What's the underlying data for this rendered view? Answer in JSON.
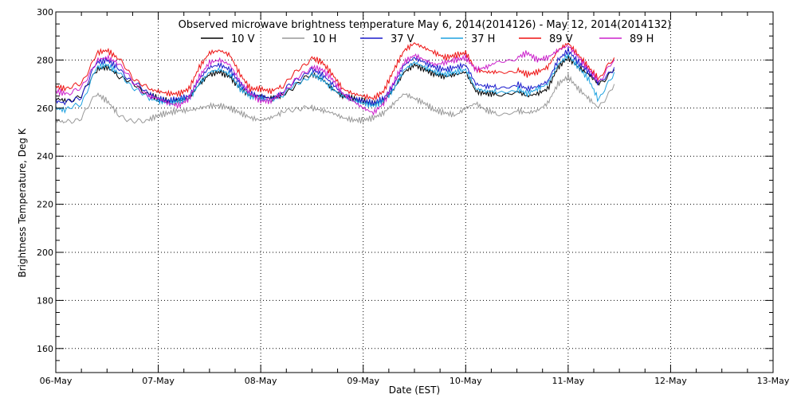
{
  "chart_data": {
    "type": "line",
    "title": "Observed microwave brightness temperature May  6, 2014(2014126) - May 12, 2014(2014132)",
    "xlabel": "Date (EST)",
    "ylabel": "Brightness Temperature, Deg K",
    "x_ticks": [
      "06-May",
      "07-May",
      "08-May",
      "09-May",
      "10-May",
      "11-May",
      "12-May",
      "13-May"
    ],
    "x_range_days": [
      0,
      7
    ],
    "ylim": [
      150,
      300
    ],
    "y_ticks": [
      160,
      180,
      200,
      220,
      240,
      260,
      280,
      300
    ],
    "grid": true,
    "legend_position": "top",
    "series": [
      {
        "name": "10 V",
        "color": "#000000",
        "x": [
          0,
          0.1,
          0.25,
          0.4,
          0.5,
          0.6,
          0.75,
          0.9,
          1.0,
          1.1,
          1.2,
          1.3,
          1.4,
          1.5,
          1.6,
          1.7,
          1.8,
          1.9,
          2.0,
          2.1,
          2.2,
          2.35,
          2.5,
          2.6,
          2.7,
          2.8,
          2.9,
          3.0,
          3.1,
          3.2,
          3.3,
          3.4,
          3.5,
          3.6,
          3.7,
          3.8,
          3.9,
          4.0,
          4.1,
          4.2,
          4.3,
          4.5,
          4.6,
          4.7,
          4.8,
          4.9,
          5.0,
          5.1,
          5.2,
          5.3,
          5.45
        ],
        "y": [
          264,
          263,
          265,
          276,
          277,
          274,
          270,
          266,
          264,
          263,
          263,
          264,
          270,
          274,
          275,
          273,
          268,
          265,
          265,
          264,
          265,
          270,
          274,
          272,
          268,
          265,
          264,
          263,
          262,
          263,
          268,
          275,
          278,
          276,
          274,
          273,
          274,
          275,
          267,
          266,
          266,
          267,
          265,
          266,
          268,
          277,
          281,
          277,
          274,
          270,
          276
        ]
      },
      {
        "name": "10 H",
        "color": "#999999",
        "x": [
          0,
          0.1,
          0.25,
          0.4,
          0.5,
          0.6,
          0.75,
          0.9,
          1.0,
          1.1,
          1.2,
          1.3,
          1.4,
          1.5,
          1.6,
          1.7,
          1.8,
          1.9,
          2.0,
          2.1,
          2.2,
          2.35,
          2.5,
          2.6,
          2.7,
          2.8,
          2.9,
          3.0,
          3.1,
          3.2,
          3.3,
          3.4,
          3.5,
          3.6,
          3.7,
          3.8,
          3.9,
          4.0,
          4.1,
          4.2,
          4.3,
          4.5,
          4.6,
          4.7,
          4.8,
          4.9,
          5.0,
          5.1,
          5.2,
          5.3,
          5.45
        ],
        "y": [
          255,
          254,
          256,
          266,
          263,
          258,
          254,
          255,
          257,
          258,
          259,
          259,
          260,
          261,
          261,
          260,
          258,
          256,
          255,
          256,
          258,
          260,
          260,
          259,
          258,
          256,
          255,
          255,
          256,
          258,
          262,
          266,
          264,
          262,
          259,
          258,
          257,
          260,
          262,
          259,
          258,
          259,
          258,
          259,
          262,
          270,
          273,
          268,
          264,
          260,
          270
        ]
      },
      {
        "name": "37 V",
        "color": "#1a1acc",
        "x": [
          0,
          0.1,
          0.25,
          0.4,
          0.5,
          0.6,
          0.75,
          0.9,
          1.0,
          1.1,
          1.2,
          1.3,
          1.4,
          1.5,
          1.6,
          1.7,
          1.8,
          1.9,
          2.0,
          2.1,
          2.2,
          2.35,
          2.5,
          2.6,
          2.7,
          2.8,
          2.9,
          3.0,
          3.1,
          3.2,
          3.3,
          3.4,
          3.5,
          3.6,
          3.7,
          3.8,
          3.9,
          4.0,
          4.1,
          4.2,
          4.3,
          4.5,
          4.6,
          4.7,
          4.8,
          4.9,
          5.0,
          5.1,
          5.2,
          5.3,
          5.45
        ],
        "y": [
          263,
          262,
          265,
          279,
          280,
          277,
          271,
          266,
          264,
          263,
          264,
          265,
          272,
          277,
          278,
          276,
          270,
          266,
          265,
          264,
          266,
          272,
          276,
          274,
          270,
          266,
          264,
          263,
          262,
          264,
          270,
          278,
          281,
          279,
          277,
          276,
          277,
          278,
          270,
          269,
          269,
          270,
          268,
          269,
          271,
          280,
          284,
          279,
          275,
          270,
          277
        ]
      },
      {
        "name": "37 H",
        "color": "#1fa2e0",
        "x": [
          0,
          0.1,
          0.25,
          0.4,
          0.5,
          0.6,
          0.75,
          0.9,
          1.0,
          1.1,
          1.2,
          1.3,
          1.4,
          1.5,
          1.6,
          1.7,
          1.8,
          1.9,
          2.0,
          2.1,
          2.2,
          2.35,
          2.5,
          2.6,
          2.7,
          2.8,
          2.9,
          3.0,
          3.1,
          3.2,
          3.3,
          3.4,
          3.5,
          3.6,
          3.7,
          3.8,
          3.9,
          4.0,
          4.1,
          4.2,
          4.3,
          4.5,
          4.6,
          4.7,
          4.8,
          4.9,
          5.0,
          5.1,
          5.2,
          5.3,
          5.45
        ],
        "y": [
          260,
          259,
          262,
          277,
          278,
          275,
          269,
          264,
          263,
          262,
          263,
          264,
          270,
          275,
          276,
          274,
          268,
          265,
          264,
          263,
          265,
          270,
          274,
          272,
          268,
          265,
          263,
          262,
          261,
          263,
          268,
          276,
          279,
          277,
          275,
          274,
          275,
          276,
          268,
          267,
          267,
          268,
          266,
          268,
          270,
          278,
          282,
          277,
          272,
          263,
          275
        ]
      },
      {
        "name": "89 V",
        "color": "#ee1111",
        "x": [
          0,
          0.1,
          0.25,
          0.4,
          0.5,
          0.6,
          0.75,
          0.9,
          1.0,
          1.1,
          1.2,
          1.3,
          1.4,
          1.5,
          1.6,
          1.7,
          1.8,
          1.9,
          2.0,
          2.1,
          2.2,
          2.35,
          2.5,
          2.6,
          2.7,
          2.8,
          2.9,
          3.0,
          3.1,
          3.2,
          3.3,
          3.4,
          3.5,
          3.6,
          3.7,
          3.8,
          3.9,
          4.0,
          4.1,
          4.2,
          4.3,
          4.5,
          4.6,
          4.7,
          4.8,
          4.9,
          5.0,
          5.1,
          5.2,
          5.3,
          5.45
        ],
        "y": [
          269,
          268,
          270,
          283,
          284,
          281,
          273,
          268,
          267,
          266,
          266,
          268,
          277,
          283,
          284,
          282,
          274,
          268,
          268,
          267,
          269,
          275,
          281,
          279,
          274,
          268,
          266,
          265,
          264,
          267,
          276,
          284,
          287,
          285,
          283,
          281,
          282,
          283,
          276,
          275,
          275,
          276,
          274,
          275,
          277,
          284,
          287,
          282,
          277,
          272,
          281
        ]
      },
      {
        "name": "89 H",
        "color": "#cc22cc",
        "x": [
          0,
          0.1,
          0.25,
          0.4,
          0.5,
          0.6,
          0.75,
          0.9,
          1.0,
          1.1,
          1.2,
          1.3,
          1.4,
          1.5,
          1.6,
          1.7,
          1.8,
          1.9,
          2.0,
          2.1,
          2.2,
          2.35,
          2.5,
          2.6,
          2.7,
          2.8,
          2.9,
          3.0,
          3.1,
          3.2,
          3.3,
          3.4,
          3.5,
          3.6,
          3.7,
          3.8,
          3.9,
          4.0,
          4.1,
          4.2,
          4.3,
          4.5,
          4.6,
          4.7,
          4.8,
          4.9,
          5.0,
          5.1,
          5.2,
          5.3,
          5.45
        ],
        "y": [
          267,
          266,
          268,
          280,
          281,
          279,
          271,
          265,
          264,
          262,
          261,
          264,
          273,
          279,
          280,
          278,
          271,
          266,
          263,
          263,
          266,
          272,
          277,
          276,
          272,
          266,
          263,
          260,
          258,
          262,
          271,
          279,
          282,
          280,
          278,
          279,
          280,
          281,
          276,
          277,
          279,
          281,
          283,
          280,
          281,
          284,
          286,
          281,
          276,
          271,
          280
        ]
      }
    ]
  }
}
